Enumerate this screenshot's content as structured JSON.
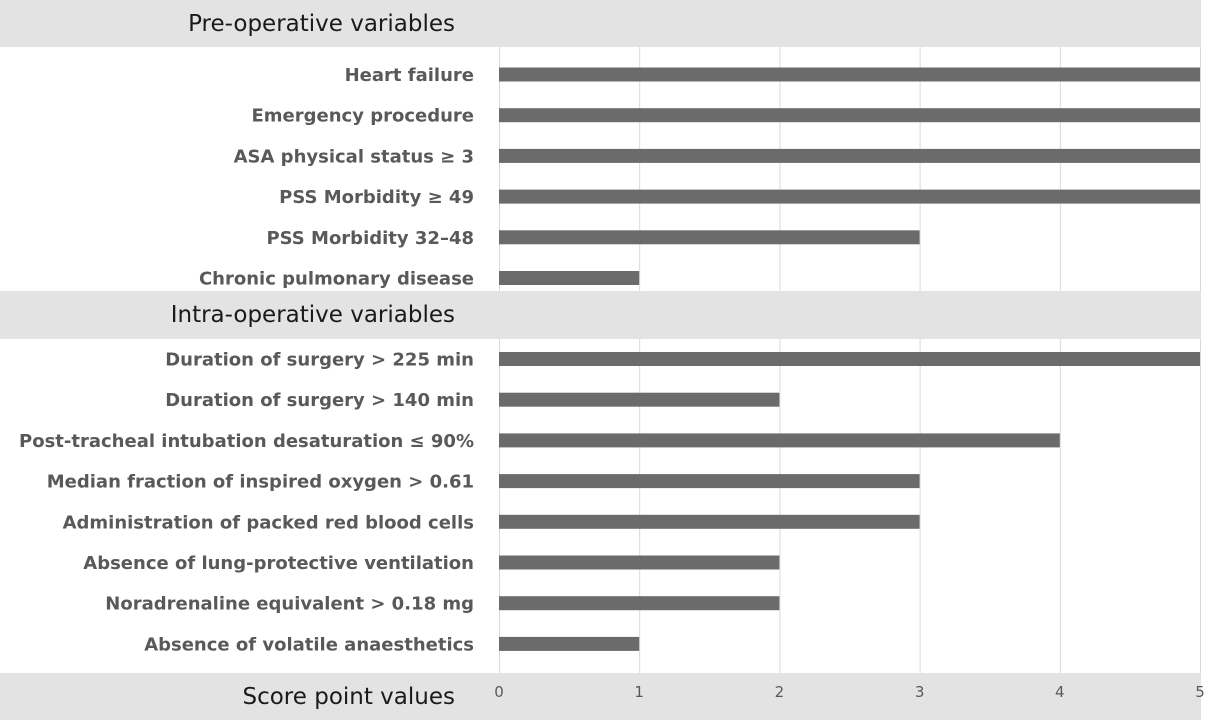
{
  "chart_data": {
    "type": "bar",
    "orientation": "horizontal",
    "xlabel": "Score point values",
    "xlim": [
      0,
      5
    ],
    "x_ticks": [
      "0",
      "1",
      "2",
      "3",
      "4",
      "5"
    ],
    "grid": "vertical",
    "bar_color": "#6b6b6b",
    "groups": [
      {
        "title": "Pre-operative variables",
        "categories": [
          "Heart failure",
          "Emergency procedure",
          "ASA physical status ≥ 3",
          "PSS Morbidity ≥ 49",
          "PSS Morbidity 32–48",
          "Chronic pulmonary disease"
        ],
        "values": [
          5,
          5,
          5,
          5,
          3,
          1
        ]
      },
      {
        "title": "Intra-operative variables",
        "categories": [
          "Duration of surgery > 225 min",
          "Duration of surgery > 140 min",
          "Post-tracheal intubation desaturation ≤ 90%",
          "Median fraction of inspired oxygen > 0.61",
          "Administration of packed red blood cells",
          "Absence of lung-protective ventilation",
          "Noradrenaline equivalent > 0.18 mg",
          "Absence of volatile anaesthetics"
        ],
        "values": [
          5,
          2,
          4,
          3,
          3,
          2,
          2,
          1
        ]
      }
    ]
  }
}
